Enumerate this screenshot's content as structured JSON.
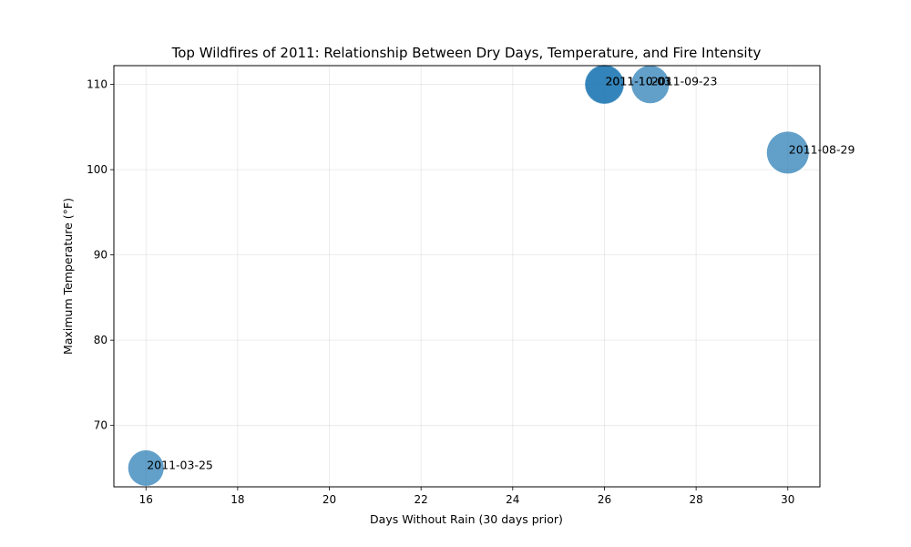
{
  "chart_data": {
    "type": "scatter",
    "title": "Top Wildfires of 2011: Relationship Between Dry Days, Temperature, and Fire Intensity",
    "xlabel": "Days Without Rain (30 days prior)",
    "ylabel": "Maximum Temperature (°F)",
    "xlim": [
      15.3,
      30.7
    ],
    "ylim": [
      62.8,
      112.2
    ],
    "xticks": [
      16,
      18,
      20,
      22,
      24,
      26,
      28,
      30
    ],
    "yticks": [
      70,
      80,
      90,
      100,
      110
    ],
    "grid": true,
    "color": "#1f77b4",
    "points": [
      {
        "x": 16,
        "y": 65,
        "label": "2011-03-25",
        "intensity": 0.85
      },
      {
        "x": 26,
        "y": 110,
        "label": "2011-10-03",
        "intensity": 0.93
      },
      {
        "x": 26,
        "y": 110,
        "label": "2011-10-01",
        "intensity": 0.9
      },
      {
        "x": 27,
        "y": 110,
        "label": "2011-09-23",
        "intensity": 0.9
      },
      {
        "x": 30,
        "y": 102,
        "label": "2011-08-29",
        "intensity": 1.0
      }
    ]
  }
}
